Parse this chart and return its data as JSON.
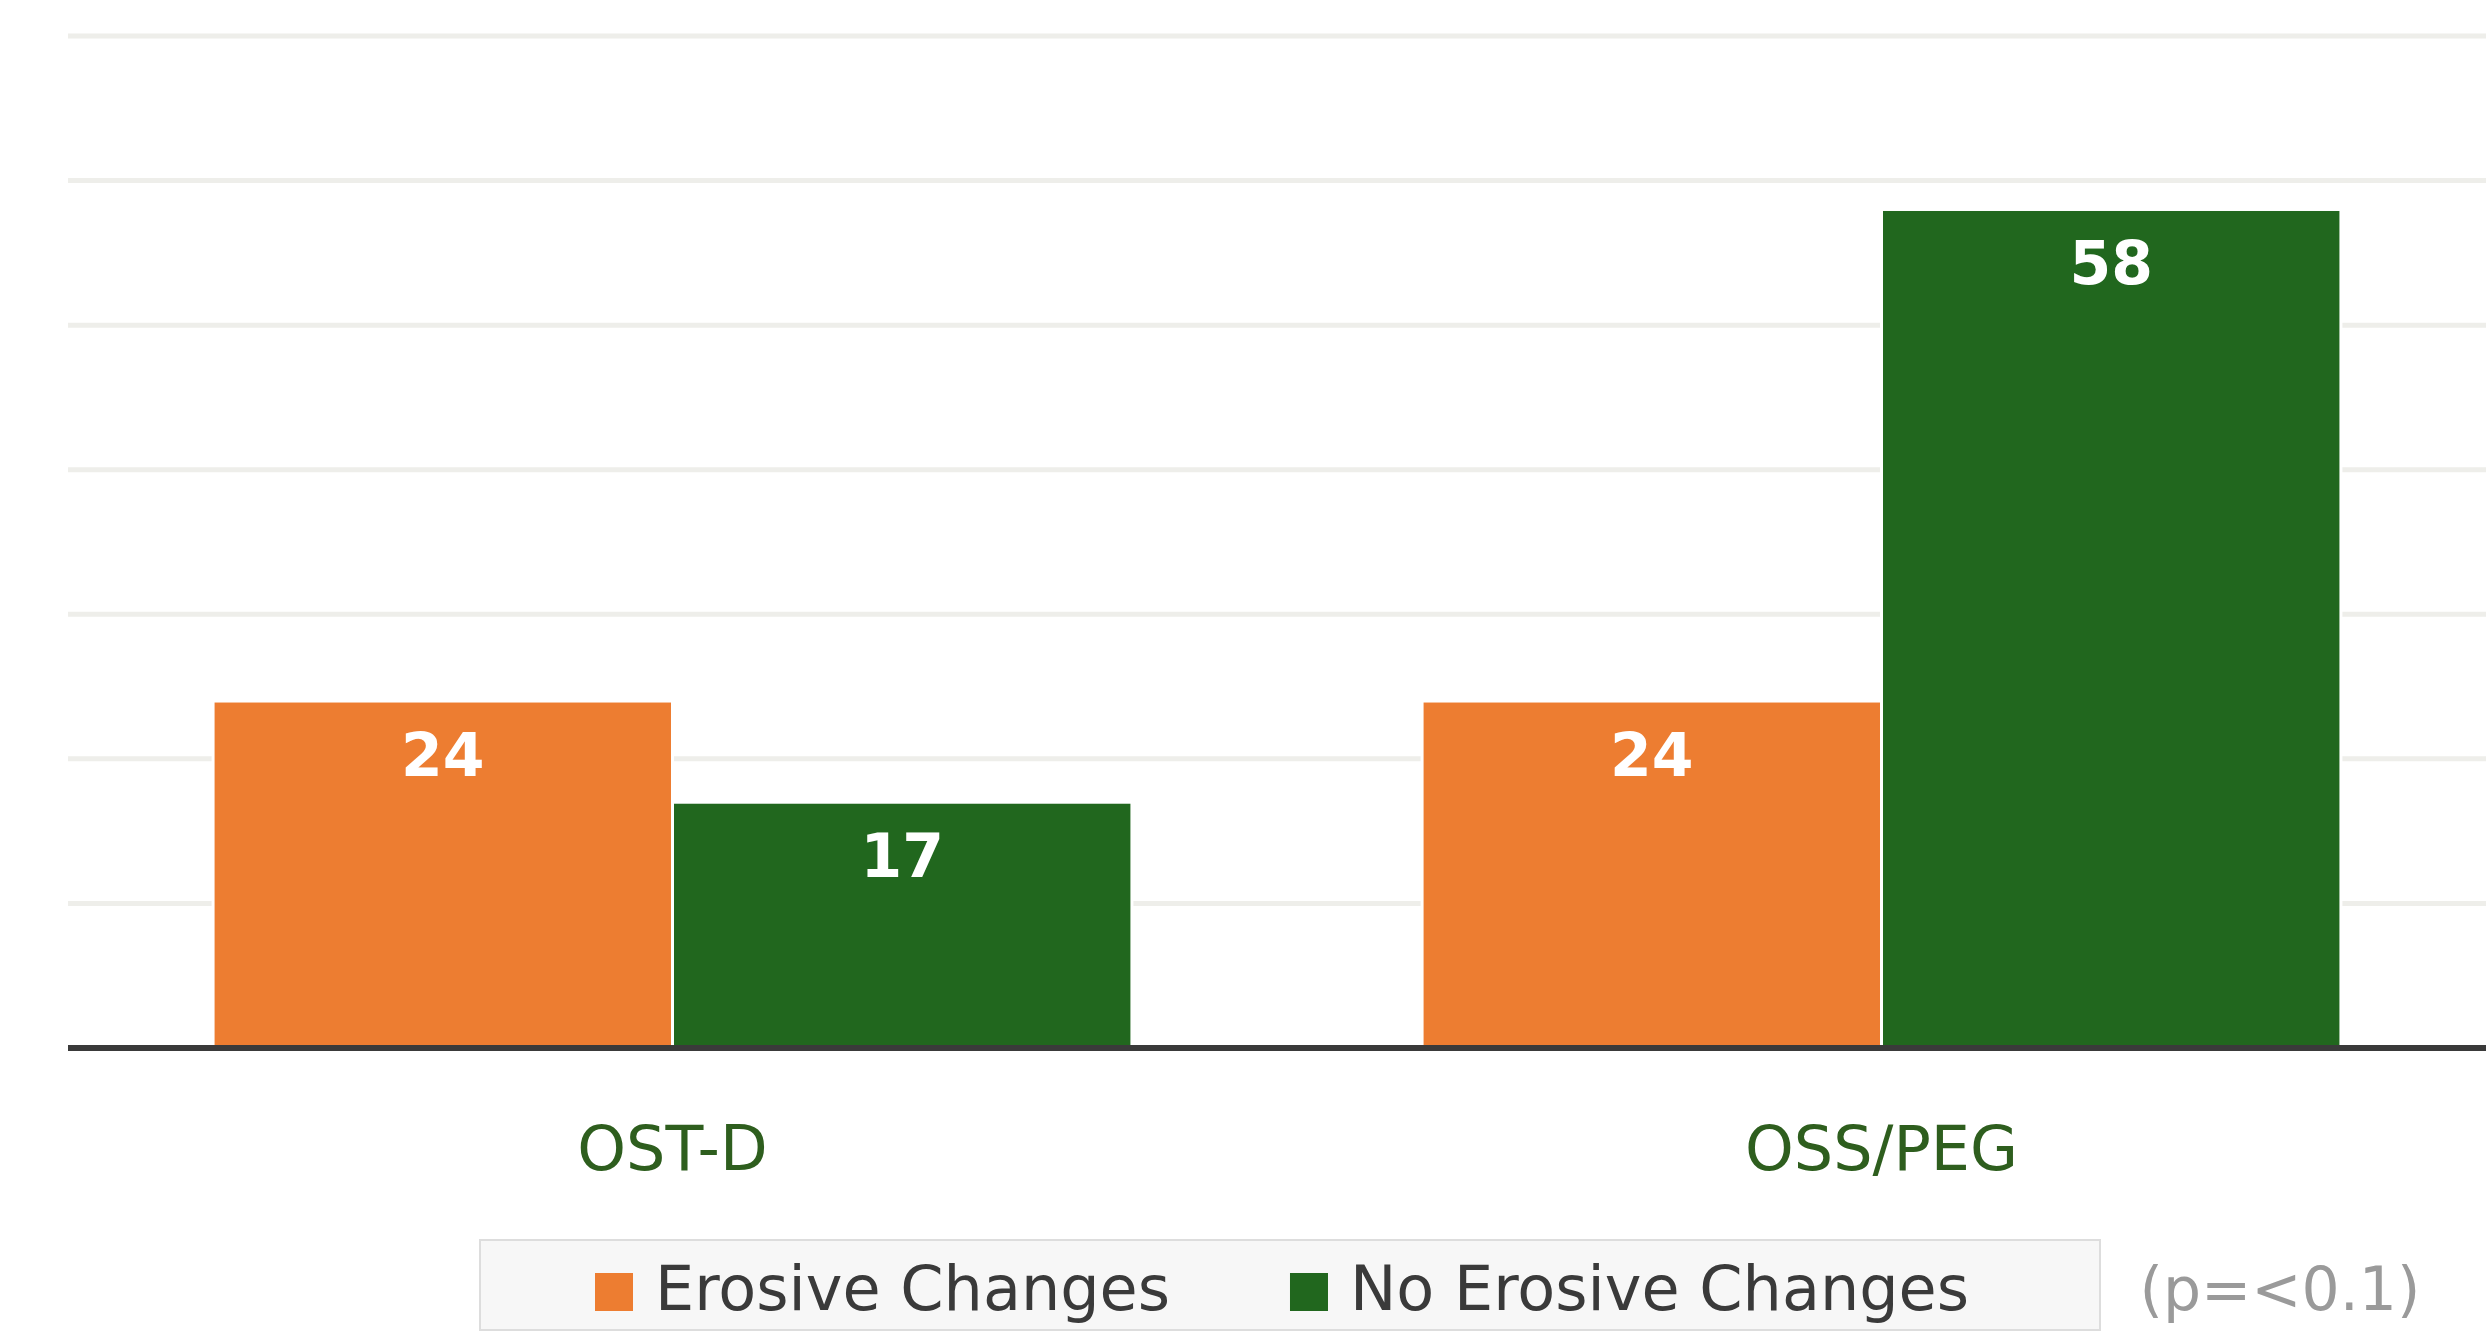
{
  "chart_data": {
    "type": "bar",
    "categories": [
      "OST-D",
      "OSS/PEG"
    ],
    "series": [
      {
        "name": "Erosive Changes",
        "color": "#ed7d31",
        "values": [
          24,
          24
        ]
      },
      {
        "name": "No Erosive Changes",
        "color": "#21671e",
        "values": [
          17,
          58
        ]
      }
    ],
    "ylim": [
      0,
      70
    ],
    "yticks": [
      {
        "value": 0,
        "label": null
      },
      {
        "value": 10,
        "label": null
      },
      {
        "value": 20,
        "label": null
      },
      {
        "value": 30,
        "label": null
      },
      {
        "value": 40,
        "label": null
      },
      {
        "value": 50,
        "label": null
      },
      {
        "value": 60,
        "label": null
      },
      {
        "value": 70,
        "label": null
      }
    ],
    "grid": "y",
    "tick_labels": "x",
    "data_labels": true,
    "legend": "bottom",
    "annotations": [
      "(p=<0.1)"
    ]
  }
}
